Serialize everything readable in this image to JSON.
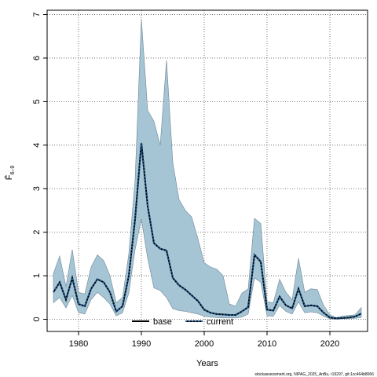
{
  "chart_data": {
    "type": "area",
    "xlabel": "Years",
    "ylabel": "F̄",
    "ylabel_subscript": "6–9",
    "xlim": [
      1975,
      2026
    ],
    "ylim": [
      -0.28,
      7.1
    ],
    "x_ticks": [
      1980,
      1990,
      2000,
      2010,
      2020
    ],
    "y_ticks": [
      0,
      1,
      2,
      3,
      4,
      5,
      6,
      7
    ],
    "grid": true,
    "legend_position": "bottom-center",
    "credit": "stockassessment.org, NIPAG_2025_AnBu, r19297, git:1cc464b8066",
    "colors": {
      "band_fill": "#a5c4d4",
      "band_edge": "#6d8796",
      "current_line": "#000000",
      "current_dots": "#1f5f9c",
      "base_line": "#000000"
    },
    "series": [
      {
        "name": "base",
        "style": "solid",
        "x": [],
        "values": []
      },
      {
        "name": "current",
        "style": "dotted",
        "x": [
          1976,
          1977,
          1978,
          1979,
          1980,
          1981,
          1982,
          1983,
          1984,
          1985,
          1986,
          1987,
          1988,
          1989,
          1990,
          1991,
          1992,
          1993,
          1994,
          1995,
          1996,
          1997,
          1998,
          1999,
          2000,
          2001,
          2002,
          2003,
          2004,
          2005,
          2006,
          2007,
          2008,
          2009,
          2010,
          2011,
          2012,
          2013,
          2014,
          2015,
          2016,
          2017,
          2018,
          2019,
          2020,
          2021,
          2022,
          2023,
          2024,
          2025
        ],
        "values": [
          0.62,
          0.85,
          0.45,
          0.95,
          0.35,
          0.3,
          0.7,
          0.92,
          0.85,
          0.62,
          0.18,
          0.3,
          1.0,
          2.3,
          4.05,
          2.6,
          1.75,
          1.62,
          1.58,
          0.95,
          0.78,
          0.68,
          0.55,
          0.42,
          0.22,
          0.15,
          0.12,
          0.11,
          0.1,
          0.1,
          0.18,
          0.28,
          1.48,
          1.32,
          0.22,
          0.2,
          0.52,
          0.32,
          0.25,
          0.7,
          0.3,
          0.32,
          0.3,
          0.15,
          0.04,
          0.02,
          0.03,
          0.04,
          0.06,
          0.13
        ],
        "lower": [
          0.38,
          0.5,
          0.26,
          0.55,
          0.15,
          0.12,
          0.45,
          0.62,
          0.5,
          0.35,
          0.08,
          0.15,
          0.6,
          1.6,
          2.3,
          1.4,
          0.72,
          0.66,
          0.5,
          0.24,
          0.2,
          0.18,
          0.15,
          0.12,
          0.07,
          0.05,
          0.04,
          0.03,
          0.03,
          0.03,
          0.05,
          0.12,
          0.95,
          0.85,
          0.08,
          0.07,
          0.32,
          0.18,
          0.12,
          0.4,
          0.15,
          0.17,
          0.15,
          0.07,
          0.01,
          0.0,
          0.01,
          0.01,
          0.02,
          0.04
        ],
        "upper": [
          1.05,
          1.45,
          0.75,
          1.6,
          0.62,
          0.58,
          1.2,
          1.48,
          1.35,
          1.0,
          0.38,
          0.5,
          1.5,
          3.2,
          6.9,
          4.8,
          4.55,
          4.0,
          5.95,
          3.6,
          2.75,
          2.5,
          2.35,
          1.85,
          1.3,
          1.2,
          1.15,
          1.0,
          0.35,
          0.3,
          0.6,
          0.7,
          2.32,
          2.2,
          0.4,
          0.38,
          0.92,
          0.62,
          0.45,
          1.4,
          0.62,
          0.7,
          0.68,
          0.32,
          0.1,
          0.04,
          0.07,
          0.09,
          0.1,
          0.27
        ]
      }
    ]
  }
}
